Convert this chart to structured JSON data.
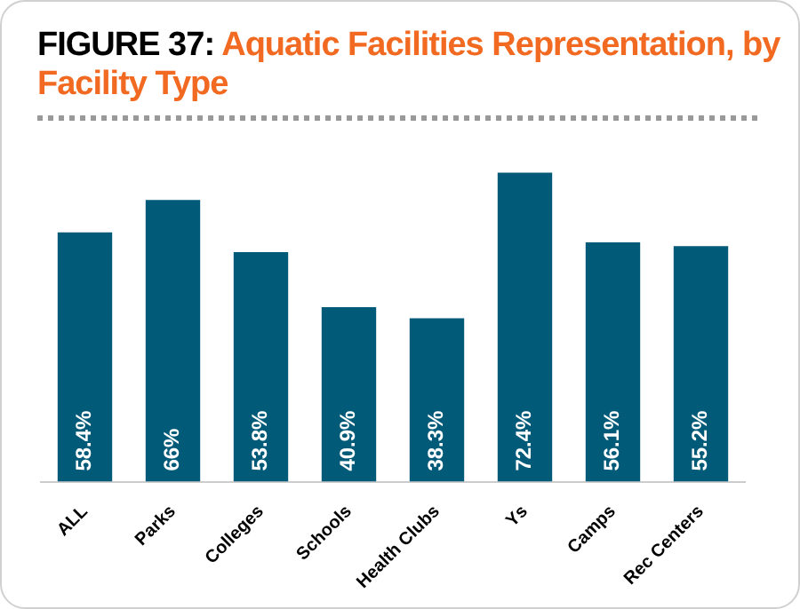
{
  "chart_data": {
    "type": "bar",
    "title": "FIGURE 37: Aquatic Facilities Representation, by Facility Type",
    "categories": [
      "ALL",
      "Parks",
      "Colleges",
      "Schools",
      "Health Clubs",
      "Ys",
      "Camps",
      "Rec Centers"
    ],
    "values": [
      58.4,
      66,
      53.8,
      40.9,
      38.3,
      72.4,
      56.1,
      55.2
    ],
    "value_labels": [
      "58.4%",
      "66%",
      "53.8%",
      "40.9%",
      "38.3%",
      "72.4%",
      "56.1%",
      "55.2%"
    ],
    "color": "#005a78",
    "grid": false,
    "legend": false
  }
}
